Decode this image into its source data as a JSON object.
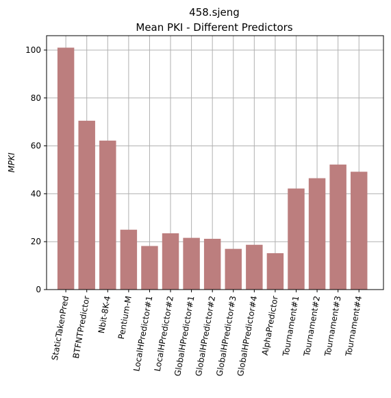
{
  "chart_data": {
    "type": "bar",
    "title": "458.sjeng",
    "subtitle": "Mean PKI - Different Predictors",
    "xlabel": "",
    "ylabel": "MPKI",
    "ylim": [
      0,
      106
    ],
    "yticks": [
      0,
      20,
      40,
      60,
      80,
      100
    ],
    "grid": true,
    "bar_color": "#bc7e7e",
    "categories": [
      "StaticTakenPred",
      "BTFNTPredictor",
      "Nbit-8K-4",
      "Pentium-M",
      "LocalHPredictor#1",
      "LocalHPredictor#2",
      "GlobalHPredictor#1",
      "GlobalHPredictor#2",
      "GlobalHPredictor#3",
      "GlobalHPredictor#4",
      "AlphaPredictor",
      "Tournament#1",
      "Tournament#2",
      "Tournament#3",
      "Tournament#4"
    ],
    "values": [
      101.0,
      70.5,
      62.2,
      25.0,
      18.2,
      23.5,
      21.6,
      21.2,
      17.0,
      18.7,
      15.2,
      42.2,
      46.5,
      52.2,
      49.2
    ]
  }
}
